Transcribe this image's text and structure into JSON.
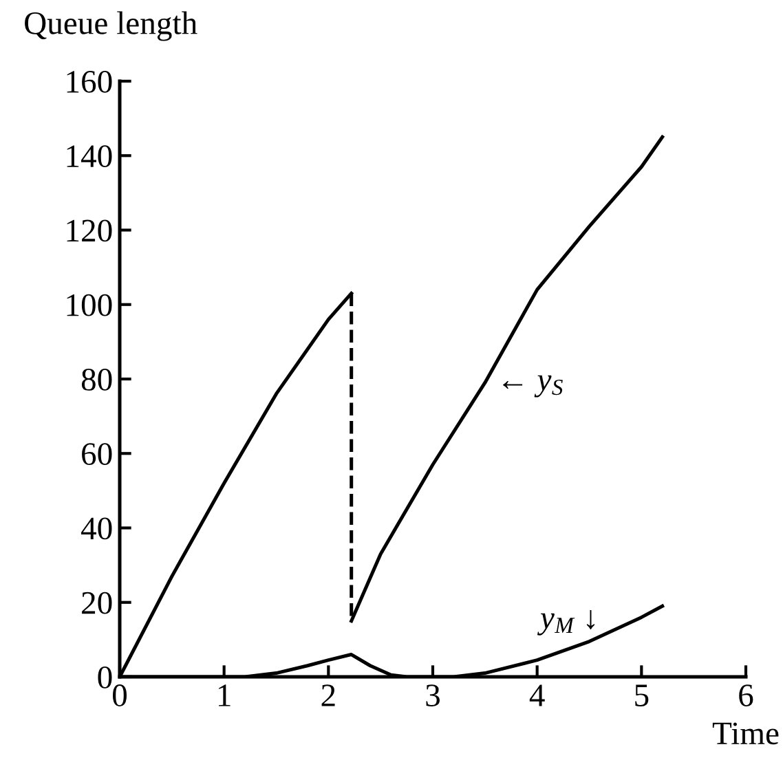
{
  "chart_data": {
    "type": "line",
    "xlabel": "Time",
    "ylabel": "Queue length",
    "xlim": [
      0,
      6
    ],
    "ylim": [
      0,
      160
    ],
    "xticks": [
      0,
      1,
      2,
      3,
      4,
      5,
      6
    ],
    "yticks": [
      0,
      20,
      40,
      60,
      80,
      100,
      120,
      140,
      160
    ],
    "grid": false,
    "legend": false,
    "marker": "none",
    "line_style": "solid",
    "series": [
      {
        "color": "#000000",
        "x": [
          0,
          0.5,
          1,
          1.5,
          2,
          2.22
        ],
        "values": [
          0,
          27,
          52,
          76,
          96,
          103
        ]
      },
      {
        "color": "#000000",
        "line_style": "dashed",
        "x": [
          2.22,
          2.22
        ],
        "values": [
          103,
          15
        ]
      },
      {
        "color": "#000000",
        "x": [
          2.22,
          2.5,
          3,
          3.5,
          4,
          4.5,
          5,
          5.2
        ],
        "values": [
          15,
          33,
          57,
          79,
          104,
          121,
          137,
          145
        ]
      },
      {
        "color": "#000000",
        "x": [
          0,
          1.2,
          1.5,
          1.8,
          2,
          2.22,
          2.4,
          2.6,
          2.75,
          3.2,
          3.5,
          4,
          4.5,
          5,
          5.2
        ],
        "values": [
          0,
          0,
          1,
          3,
          4.5,
          6,
          3,
          0.5,
          0,
          0,
          1,
          4.5,
          9.5,
          16,
          19
        ]
      }
    ],
    "annotations": [
      {
        "text": "← y$_{S}$",
        "x": 3.5,
        "y": 79
      },
      {
        "text": "y$_{M}$ ↓",
        "x": 4.5,
        "y": 9.5
      }
    ]
  }
}
